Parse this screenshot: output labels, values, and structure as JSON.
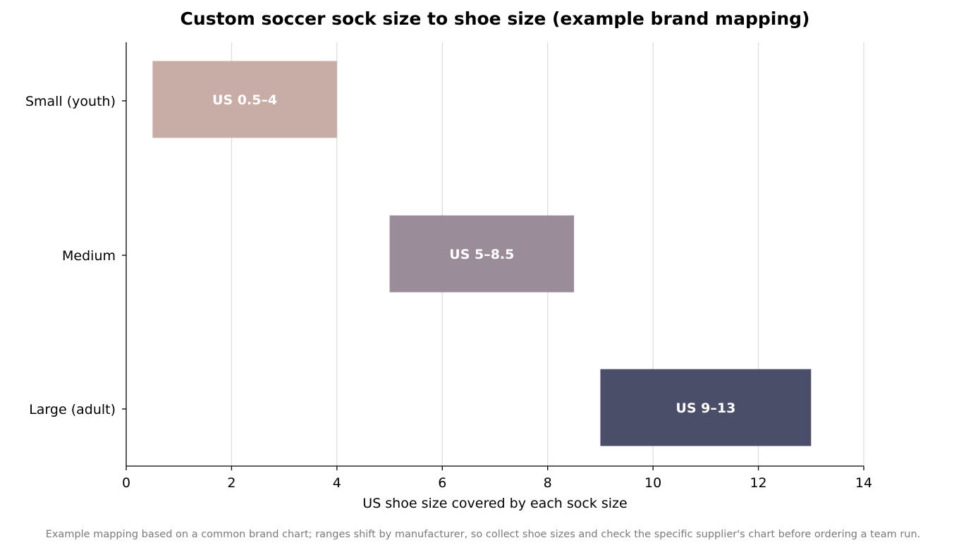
{
  "chart_data": {
    "type": "bar",
    "orientation": "horizontal",
    "style": "floating-range",
    "title": "Custom soccer sock size to shoe size (example brand mapping)",
    "xlabel": "US shoe size covered by each sock size",
    "ylabel": "",
    "xlim": [
      0,
      14
    ],
    "xticks": [
      0,
      2,
      4,
      6,
      8,
      10,
      12,
      14
    ],
    "grid": "vertical",
    "legend": "none",
    "categories": [
      "Small (youth)",
      "Medium",
      "Large (adult)"
    ],
    "ranges": [
      {
        "category": "Small (youth)",
        "start": 0.5,
        "end": 4,
        "label": "US 0.5–4",
        "color": "#c8ada6"
      },
      {
        "category": "Medium",
        "start": 5,
        "end": 8.5,
        "label": "US 5–8.5",
        "color": "#9b8c99"
      },
      {
        "category": "Large (adult)",
        "start": 9,
        "end": 13,
        "label": "US 9–13",
        "color": "#4a4e68"
      }
    ],
    "footnote": "Example mapping based on a common brand chart; ranges shift by manufacturer, so collect shoe sizes and check the specific supplier's chart before ordering a team run."
  }
}
